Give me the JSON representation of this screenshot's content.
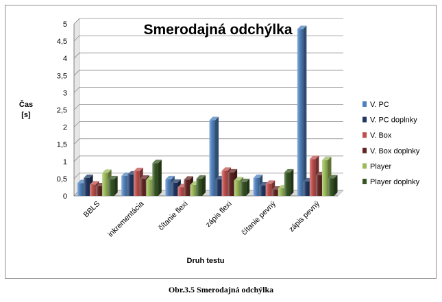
{
  "chart_data": {
    "type": "bar",
    "title": "Smerodajná odchýlka",
    "xlabel": "Druh testu",
    "ylabel": [
      "Čas",
      "[s]"
    ],
    "ylim": [
      0,
      5
    ],
    "yticks": [
      "0",
      "0,5",
      "1",
      "1,5",
      "2",
      "2,5",
      "3",
      "3,5",
      "4",
      "4,5",
      "5"
    ],
    "categories": [
      "BBLS",
      "inkrementácia",
      "čítanie flexi",
      "zápis flexi",
      "čítanie pevný",
      "zápis pevný"
    ],
    "grid": true,
    "legend_position": "right",
    "series": [
      {
        "name": "V. PC",
        "color": "#4f81bd",
        "values": [
          0.37,
          0.58,
          0.48,
          2.2,
          0.52,
          4.85
        ]
      },
      {
        "name": "V. PC doplnky",
        "color": "#1f3864",
        "values": [
          0.52,
          0.62,
          0.38,
          0.48,
          0.3,
          0.42
        ]
      },
      {
        "name": "V. Box",
        "color": "#c0504d",
        "values": [
          0.33,
          0.72,
          0.25,
          0.73,
          0.35,
          1.07
        ]
      },
      {
        "name": "V. Box doplnky",
        "color": "#632523",
        "values": [
          0.28,
          0.5,
          0.47,
          0.68,
          0.18,
          0.6
        ]
      },
      {
        "name": "Player",
        "color": "#9bbb59",
        "values": [
          0.67,
          0.47,
          0.32,
          0.45,
          0.22,
          1.04
        ]
      },
      {
        "name": "Player doplnky",
        "color": "#375623",
        "values": [
          0.48,
          0.95,
          0.5,
          0.4,
          0.68,
          0.51
        ]
      }
    ]
  },
  "caption": "Obr.3.5 Smerodajná odchýlka"
}
